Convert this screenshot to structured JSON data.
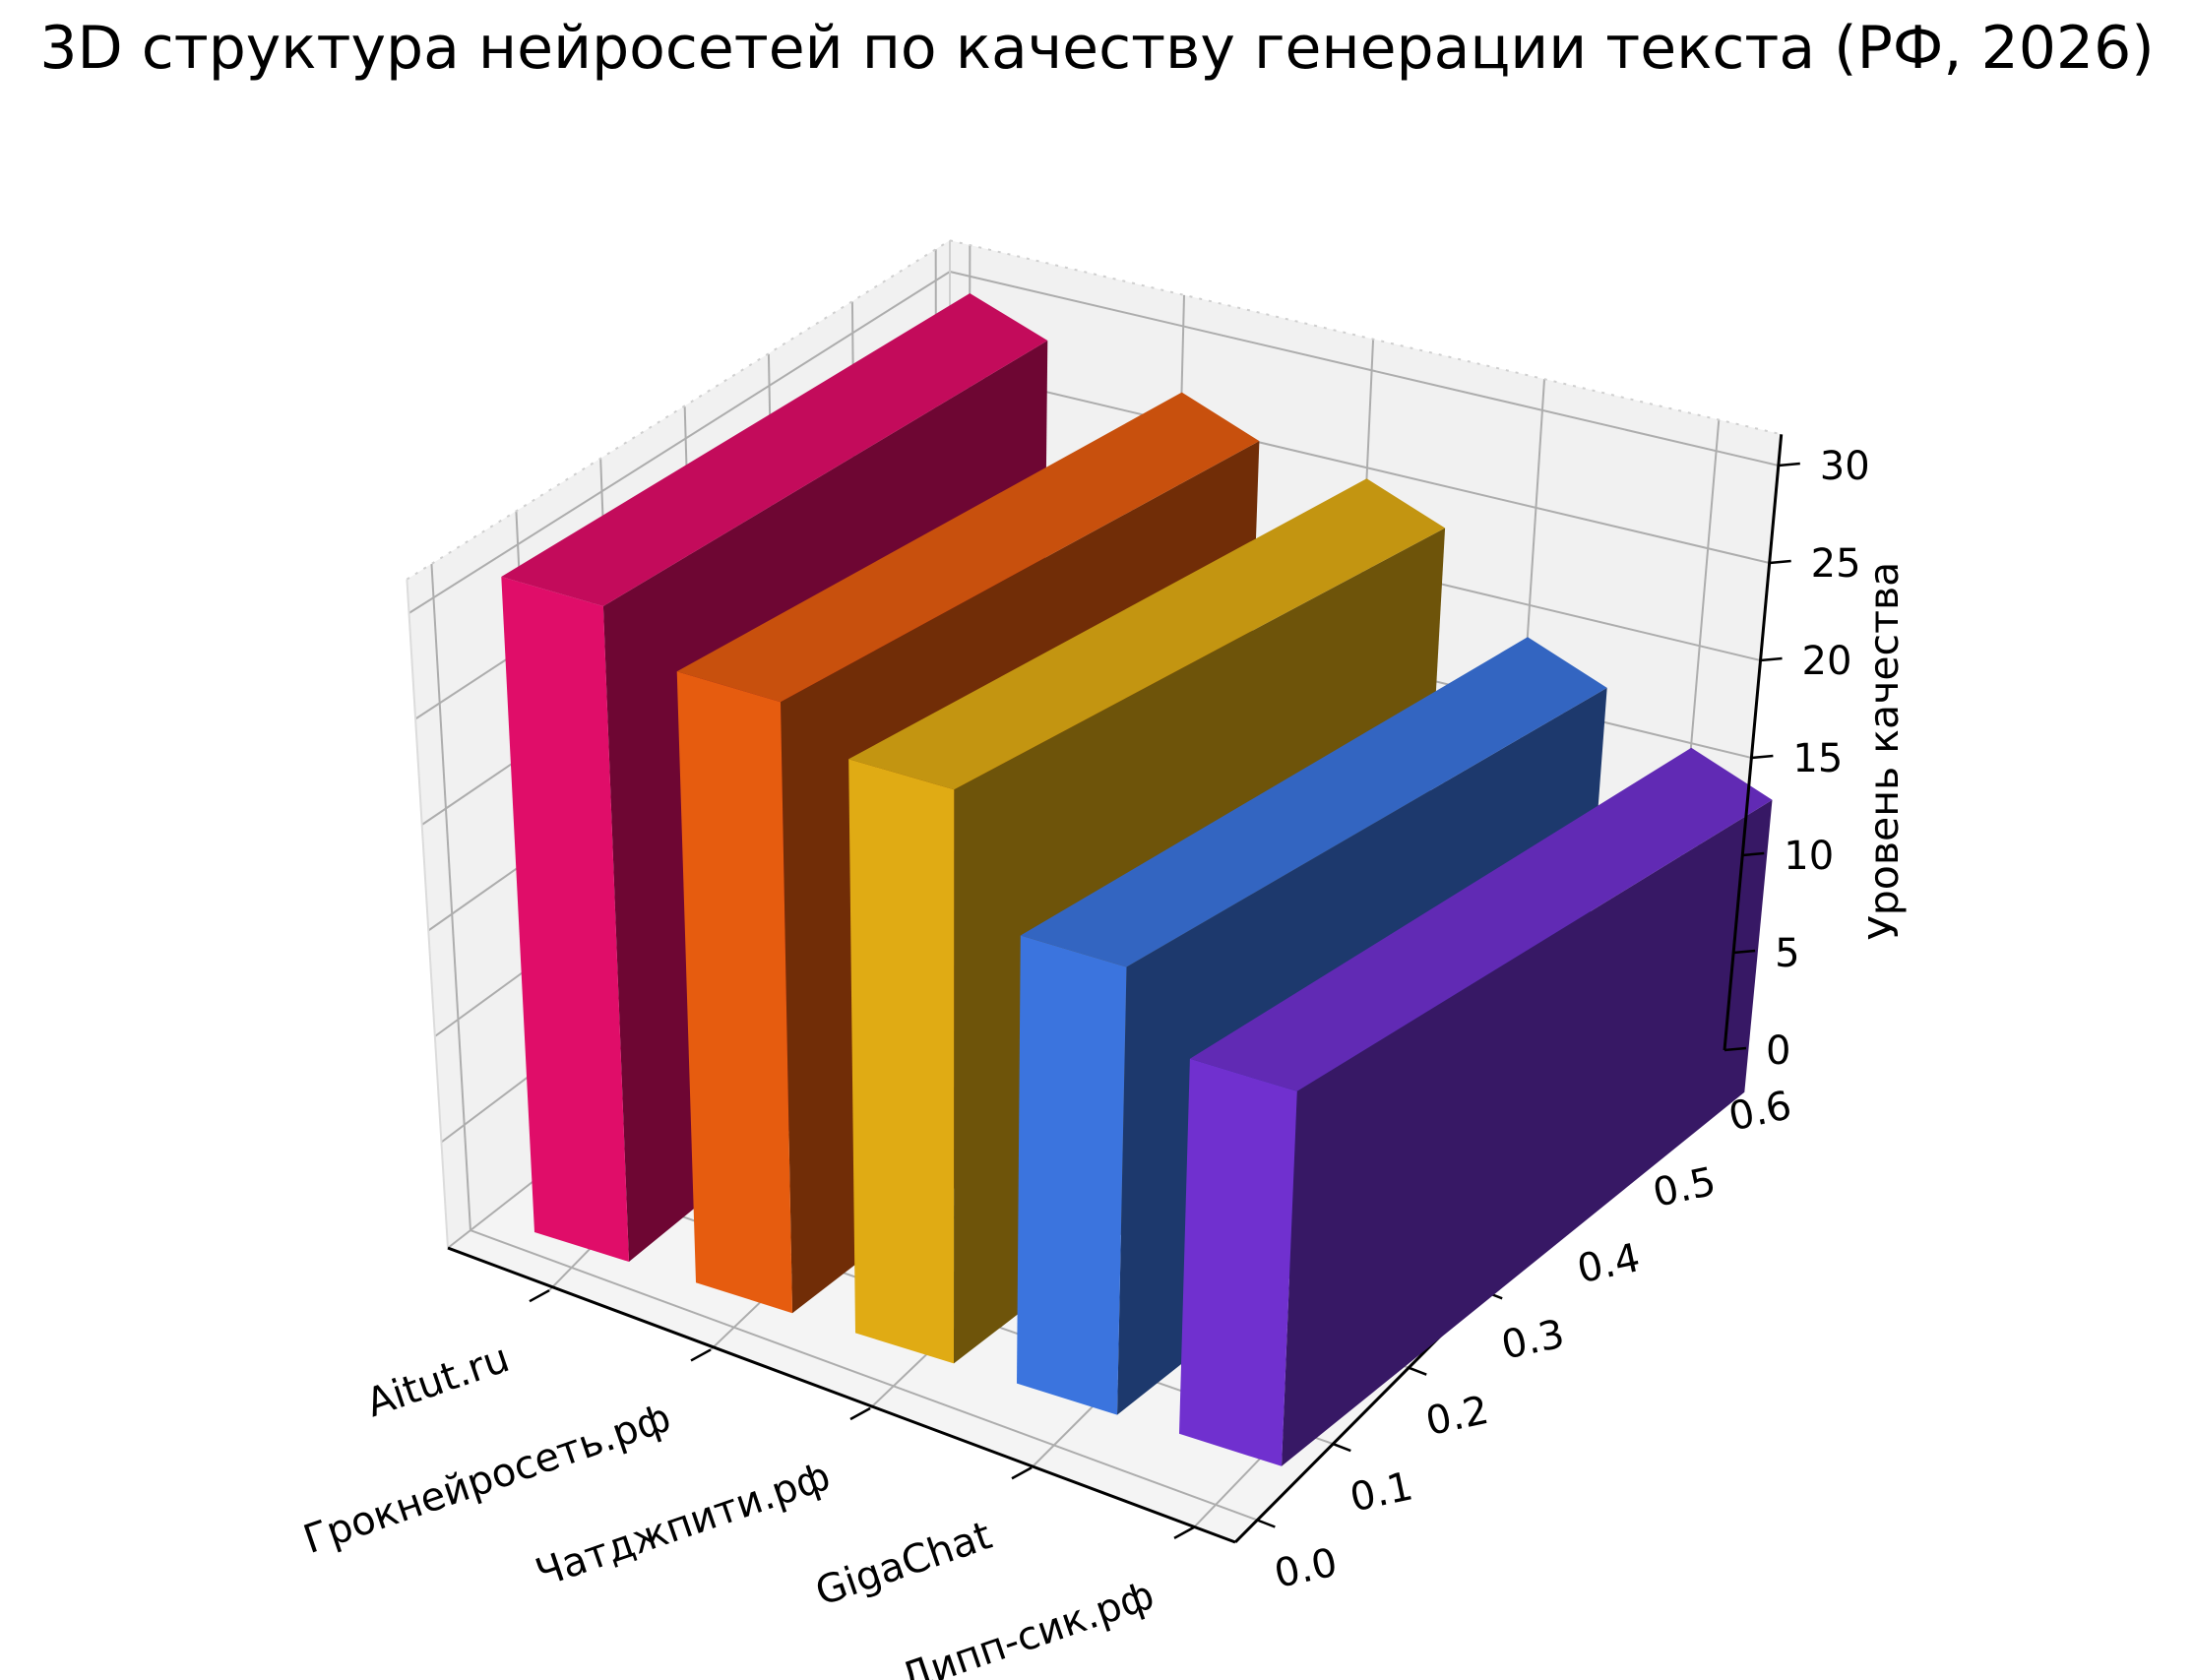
{
  "title": "3D структура нейросетей по качеству генерации текста (РФ, 2026)",
  "chart_data": {
    "type": "bar",
    "projection": "3d",
    "categories": [
      "Aitut.ru",
      "Грокнейросеть.рф",
      "Чатджпити.рф",
      "GigaChat",
      "Дипп-сик.рф"
    ],
    "values": [
      30,
      27,
      24.5,
      18.5,
      15
    ],
    "bar_colors": [
      "#e00d69",
      "#e65c0f",
      "#e0ab14",
      "#3b74de",
      "#7030cf"
    ],
    "bar_side_shade": 0.49,
    "bar_top_shade": 0.87,
    "xlabel": "",
    "ylabel": "",
    "zlabel": "Уровень качества",
    "y_ticks": [
      "0.0",
      "0.1",
      "0.2",
      "0.3",
      "0.4",
      "0.5",
      "0.6"
    ],
    "z_ticks": [
      "0",
      "5",
      "10",
      "15",
      "20",
      "25",
      "30"
    ],
    "zlim": [
      0,
      30
    ],
    "grid": true,
    "legend": false,
    "colors": {
      "background": "#ffffff",
      "pane": "#f1f1f1",
      "pane_floor": "#f4f4f4",
      "gridline": "#adadad",
      "pane_edge": "#cfcfcf",
      "axis_line": "#000000",
      "text": "#000000"
    }
  }
}
